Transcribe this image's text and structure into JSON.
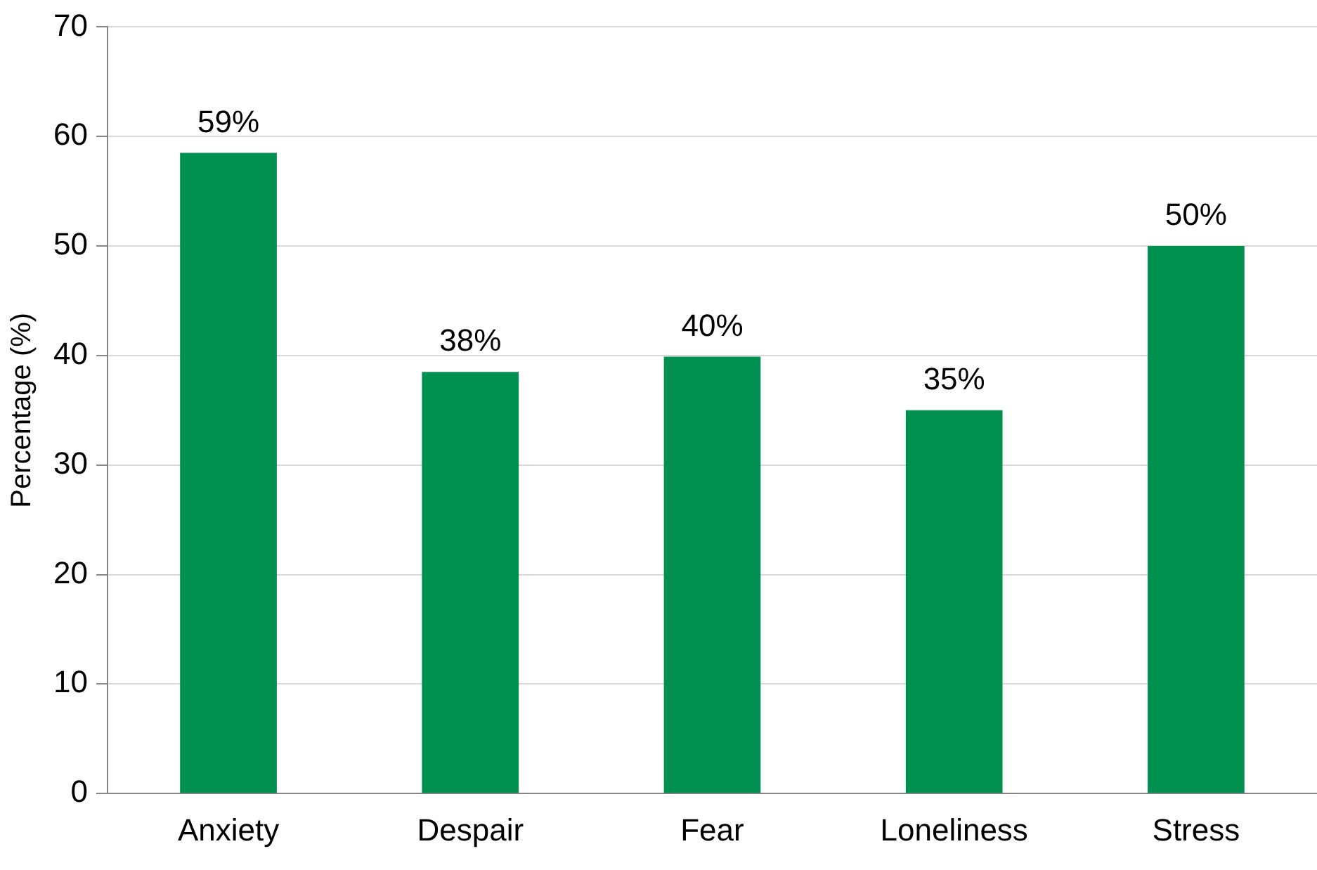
{
  "chart_data": {
    "type": "bar",
    "ylabel": "Percentage (%)",
    "categories": [
      "Anxiety",
      "Despair",
      "Fear",
      "Loneliness",
      "Stress"
    ],
    "values": [
      58.5,
      38.5,
      39.9,
      35,
      50
    ],
    "value_labels": [
      "59%",
      "38%",
      "40%",
      "35%",
      "50%"
    ],
    "color": "#009150",
    "ylim": [
      0,
      70
    ],
    "yticks": [
      0,
      10,
      20,
      30,
      40,
      50,
      60,
      70
    ],
    "grid": "y",
    "legend": false
  }
}
